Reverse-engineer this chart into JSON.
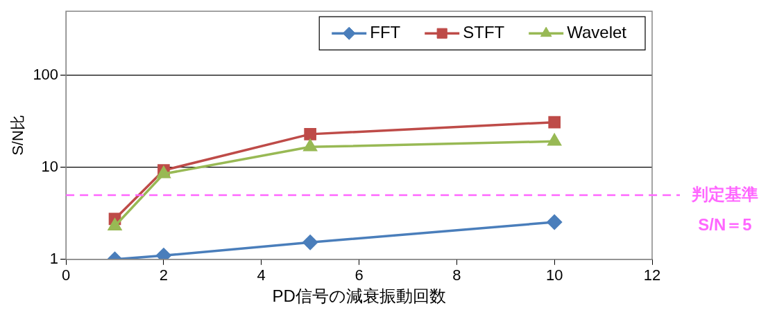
{
  "chart_data": {
    "type": "line",
    "xlabel": "PD信号の減衰振動回数",
    "ylabel": "S/N比",
    "x": [
      1,
      2,
      5,
      10
    ],
    "series": [
      {
        "name": "FFT",
        "color": "#4a7ebb",
        "values": [
          1.0,
          1.1,
          1.53,
          2.54
        ],
        "marker": "diamond"
      },
      {
        "name": "STFT",
        "color": "#be4b48",
        "values": [
          2.75,
          9.3,
          23,
          31
        ],
        "marker": "square"
      },
      {
        "name": "Wavelet",
        "color": "#98b954",
        "values": [
          2.3,
          8.5,
          16.7,
          19.2
        ],
        "marker": "triangle"
      }
    ],
    "xlim": [
      0,
      12
    ],
    "xticks": [
      0,
      2,
      4,
      6,
      8,
      10,
      12
    ],
    "ylim": [
      1,
      500
    ],
    "yticks": [
      1,
      10,
      100
    ],
    "log": "y",
    "grid": "y",
    "legend": "top right",
    "line_style": "solid",
    "ref_lines": [
      {
        "axis": "y",
        "value": 5,
        "label": "判定基準\nS/N＝5",
        "color": "#ff66ff",
        "line_style": "dashed"
      }
    ]
  }
}
